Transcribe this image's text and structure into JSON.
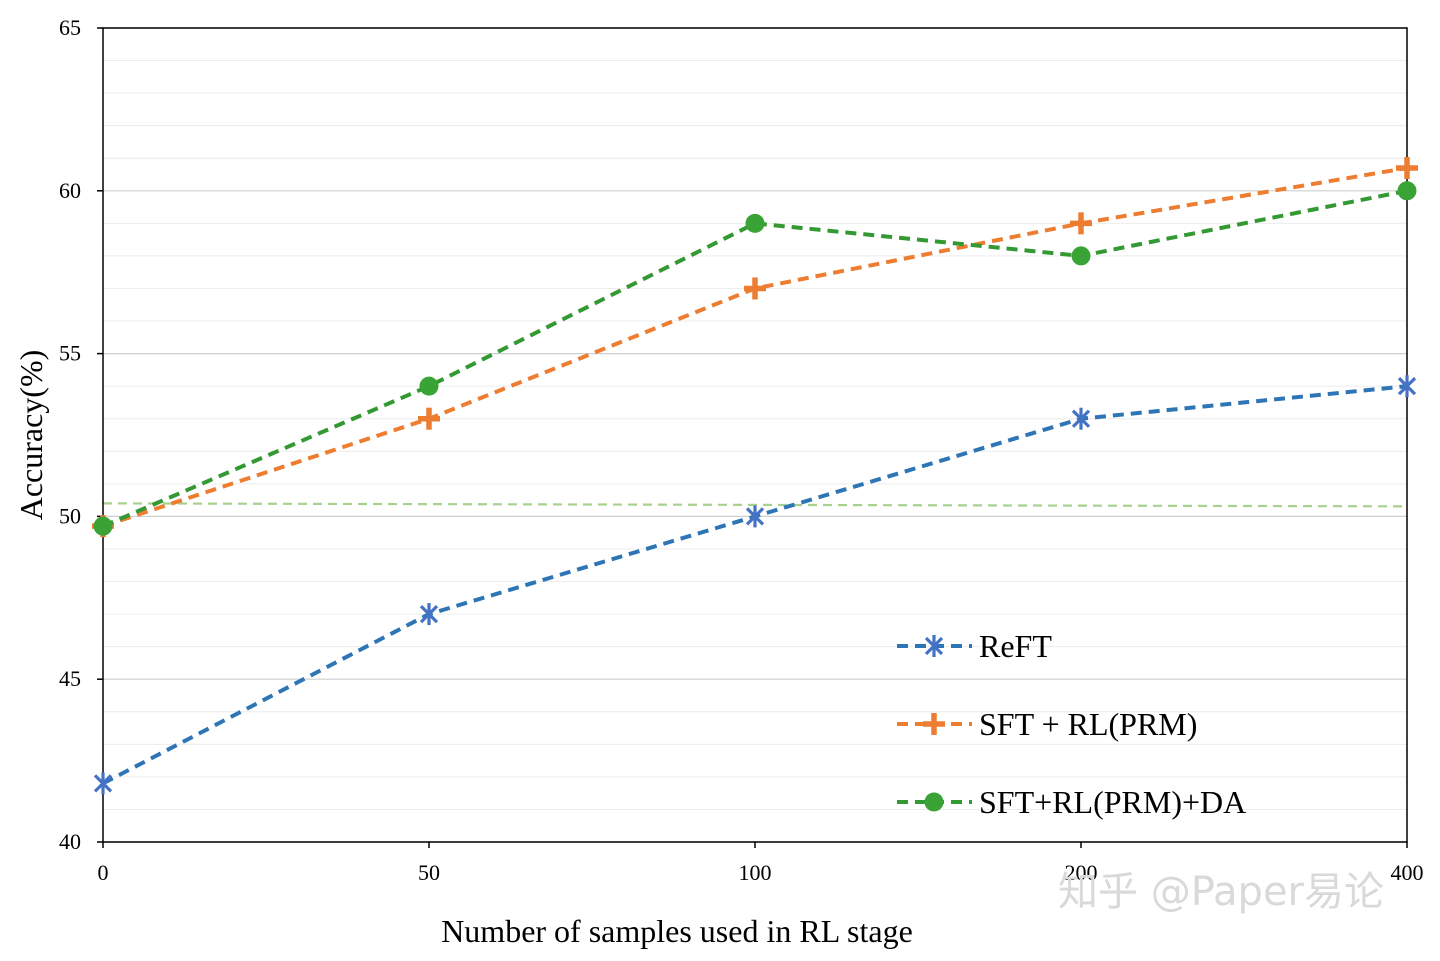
{
  "chart_data": {
    "type": "line",
    "title": "",
    "xlabel": "Number of samples used in RL stage",
    "ylabel": "Accuracy(%)",
    "categories": [
      "0",
      "50",
      "100",
      "200",
      "400"
    ],
    "ylim": [
      40,
      65
    ],
    "yticks": [
      40,
      45,
      50,
      55,
      60,
      65
    ],
    "grid": true,
    "legend_position": "bottom-right",
    "reference_line": {
      "value": 50.4,
      "color": "#a9d18e",
      "style": "dashed"
    },
    "series": [
      {
        "name": "ReFT",
        "values": [
          41.8,
          47,
          50,
          53,
          54
        ],
        "color": "#2e75b6",
        "marker": "asterisk",
        "marker_color": "#4472c4"
      },
      {
        "name": "SFT + RL(PRM)",
        "values": [
          49.7,
          53,
          57,
          59,
          60.7
        ],
        "color": "#ed7d31",
        "marker": "plus",
        "marker_color": "#ed7d31"
      },
      {
        "name": "SFT+RL(PRM)+DA",
        "values": [
          49.7,
          54,
          59,
          58,
          60
        ],
        "color": "#339933",
        "marker": "circle",
        "marker_color": "#3aa335"
      }
    ]
  },
  "watermark": "知乎 @Paper易论"
}
